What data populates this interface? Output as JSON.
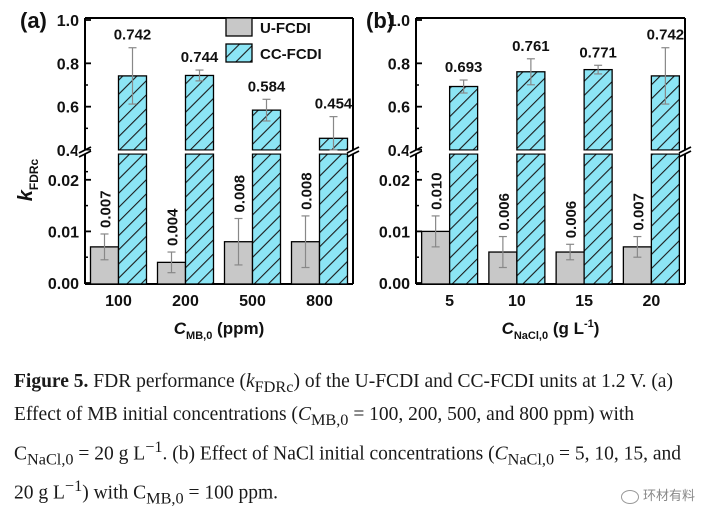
{
  "chart_data": [
    {
      "type": "bar",
      "panel_label": "(a)",
      "categories": [
        "100",
        "200",
        "500",
        "800"
      ],
      "xlabel": {
        "main": "C",
        "sub": "MB,0",
        "unit": " (ppm)"
      },
      "ylabel": {
        "main": "k",
        "sub": "FDRc"
      },
      "ylim_lower": [
        0,
        0.025
      ],
      "ylim_upper": [
        0.4,
        1.0
      ],
      "yticks_lower": [
        "0.00",
        "0.01",
        "0.02"
      ],
      "yticks_upper": [
        "0.4",
        "0.6",
        "0.8",
        "1.0"
      ],
      "series": [
        {
          "name": "U-FCDI",
          "color": "#c8c8c8",
          "values": [
            0.007,
            0.004,
            0.008,
            0.008
          ],
          "errors": [
            0.0025,
            0.002,
            0.0045,
            0.005
          ],
          "labels": [
            "0.007",
            "0.004",
            "0.008",
            "0.008"
          ]
        },
        {
          "name": "CC-FCDI",
          "color": "#8ce5f5",
          "hatch": "diagonal",
          "values": [
            0.742,
            0.744,
            0.584,
            0.454
          ],
          "errors": [
            0.13,
            0.025,
            0.05,
            0.1
          ],
          "labels": [
            "0.742",
            "0.744",
            "0.584",
            "0.454"
          ]
        }
      ],
      "legend": "top-right"
    },
    {
      "type": "bar",
      "panel_label": "(b)",
      "categories": [
        "5",
        "10",
        "15",
        "20"
      ],
      "xlabel": {
        "main": "C",
        "sub": "NaCl,0",
        "unit": " (g L",
        "sup": "-1",
        "close": ")"
      },
      "ylim_lower": [
        0,
        0.025
      ],
      "ylim_upper": [
        0.4,
        1.0
      ],
      "yticks_lower": [
        "0.00",
        "0.01",
        "0.02"
      ],
      "yticks_upper": [
        "0.4",
        "0.6",
        "0.8",
        "1.0"
      ],
      "series": [
        {
          "name": "U-FCDI",
          "color": "#c8c8c8",
          "values": [
            0.01,
            0.006,
            0.006,
            0.007
          ],
          "errors": [
            0.003,
            0.003,
            0.0015,
            0.002
          ],
          "labels": [
            "0.010",
            "0.006",
            "0.006",
            "0.007"
          ]
        },
        {
          "name": "CC-FCDI",
          "color": "#8ce5f5",
          "hatch": "diagonal",
          "values": [
            0.693,
            0.761,
            0.771,
            0.742
          ],
          "errors": [
            0.03,
            0.06,
            0.02,
            0.13
          ],
          "labels": [
            "0.693",
            "0.761",
            "0.771",
            "0.742"
          ]
        }
      ]
    }
  ],
  "caption": {
    "label": "Figure 5.",
    "t1": " FDR performance (",
    "k": "k",
    "k_sub": "FDRc",
    "t2": ") of the U-FCDI and CC-FCDI units at 1.2 V. (a) Effect of MB initial concentrations (",
    "c1": "C",
    "c1_sub": "MB,0",
    "t3": " = 100, 200, 500, and 800 ppm) with C",
    "c2_sub": "NaCl,0",
    "t4": " = 20 g L",
    "sup1": "−1",
    "t5": ". (b) Effect of NaCl initial concentrations (",
    "c3": "C",
    "c3_sub": "NaCl,0",
    "t6": " = 5, 10, 15, and 20 g L",
    "sup2": "−1",
    "t7": ") with C",
    "c4_sub": "MB,0",
    "t8": " = 100 ppm."
  },
  "watermark": "环材有料"
}
